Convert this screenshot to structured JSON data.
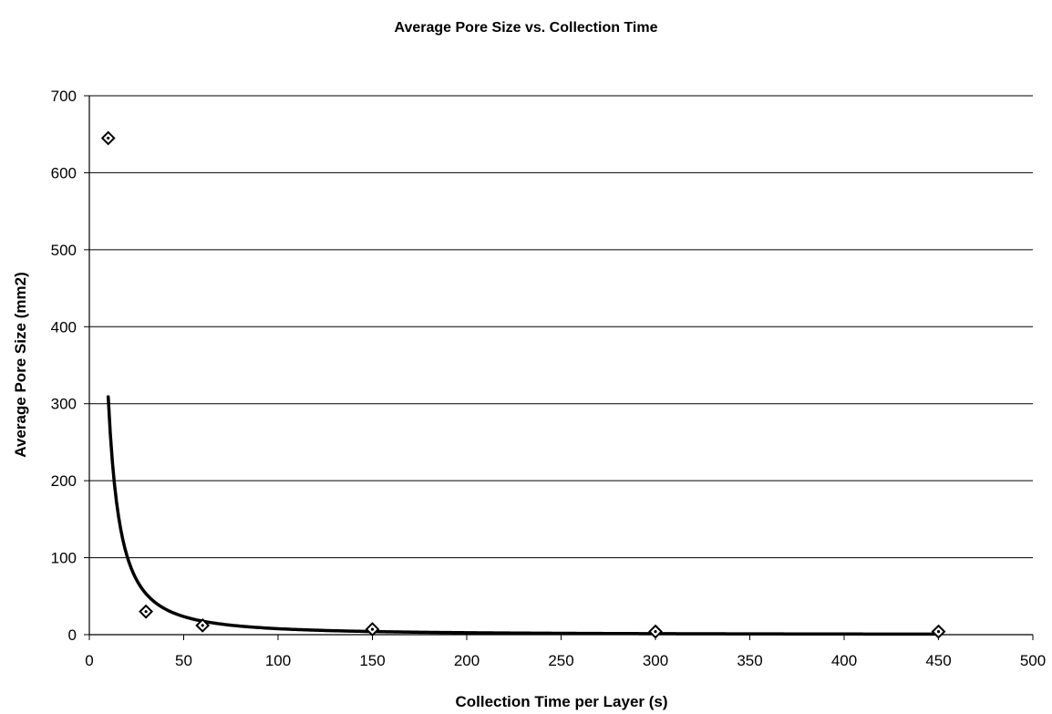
{
  "chart_data": {
    "type": "scatter",
    "title": "Average Pore Size vs. Collection Time",
    "xlabel": "Collection Time per Layer (s)",
    "ylabel": "Average Pore Size (mm2)",
    "xlim": [
      0,
      500
    ],
    "ylim": [
      0,
      700
    ],
    "x_ticks": [
      "0",
      "50",
      "100",
      "150",
      "200",
      "250",
      "300",
      "350",
      "400",
      "450",
      "500"
    ],
    "y_ticks": [
      "0",
      "100",
      "200",
      "300",
      "400",
      "500",
      "600",
      "700"
    ],
    "grid": "horizontal",
    "legend": "none",
    "series": [
      {
        "marker": "diamond",
        "x": [
          10,
          30,
          60,
          150,
          300,
          450
        ],
        "y": [
          645,
          30,
          12,
          7,
          4,
          4
        ]
      }
    ],
    "trendline": {
      "type": "power",
      "x_range": [
        10,
        450
      ],
      "equation_form": "y = a * x^b",
      "a": 12300,
      "b": -1.6
    },
    "colors": {
      "ink": "#000000",
      "background": "#ffffff"
    }
  }
}
